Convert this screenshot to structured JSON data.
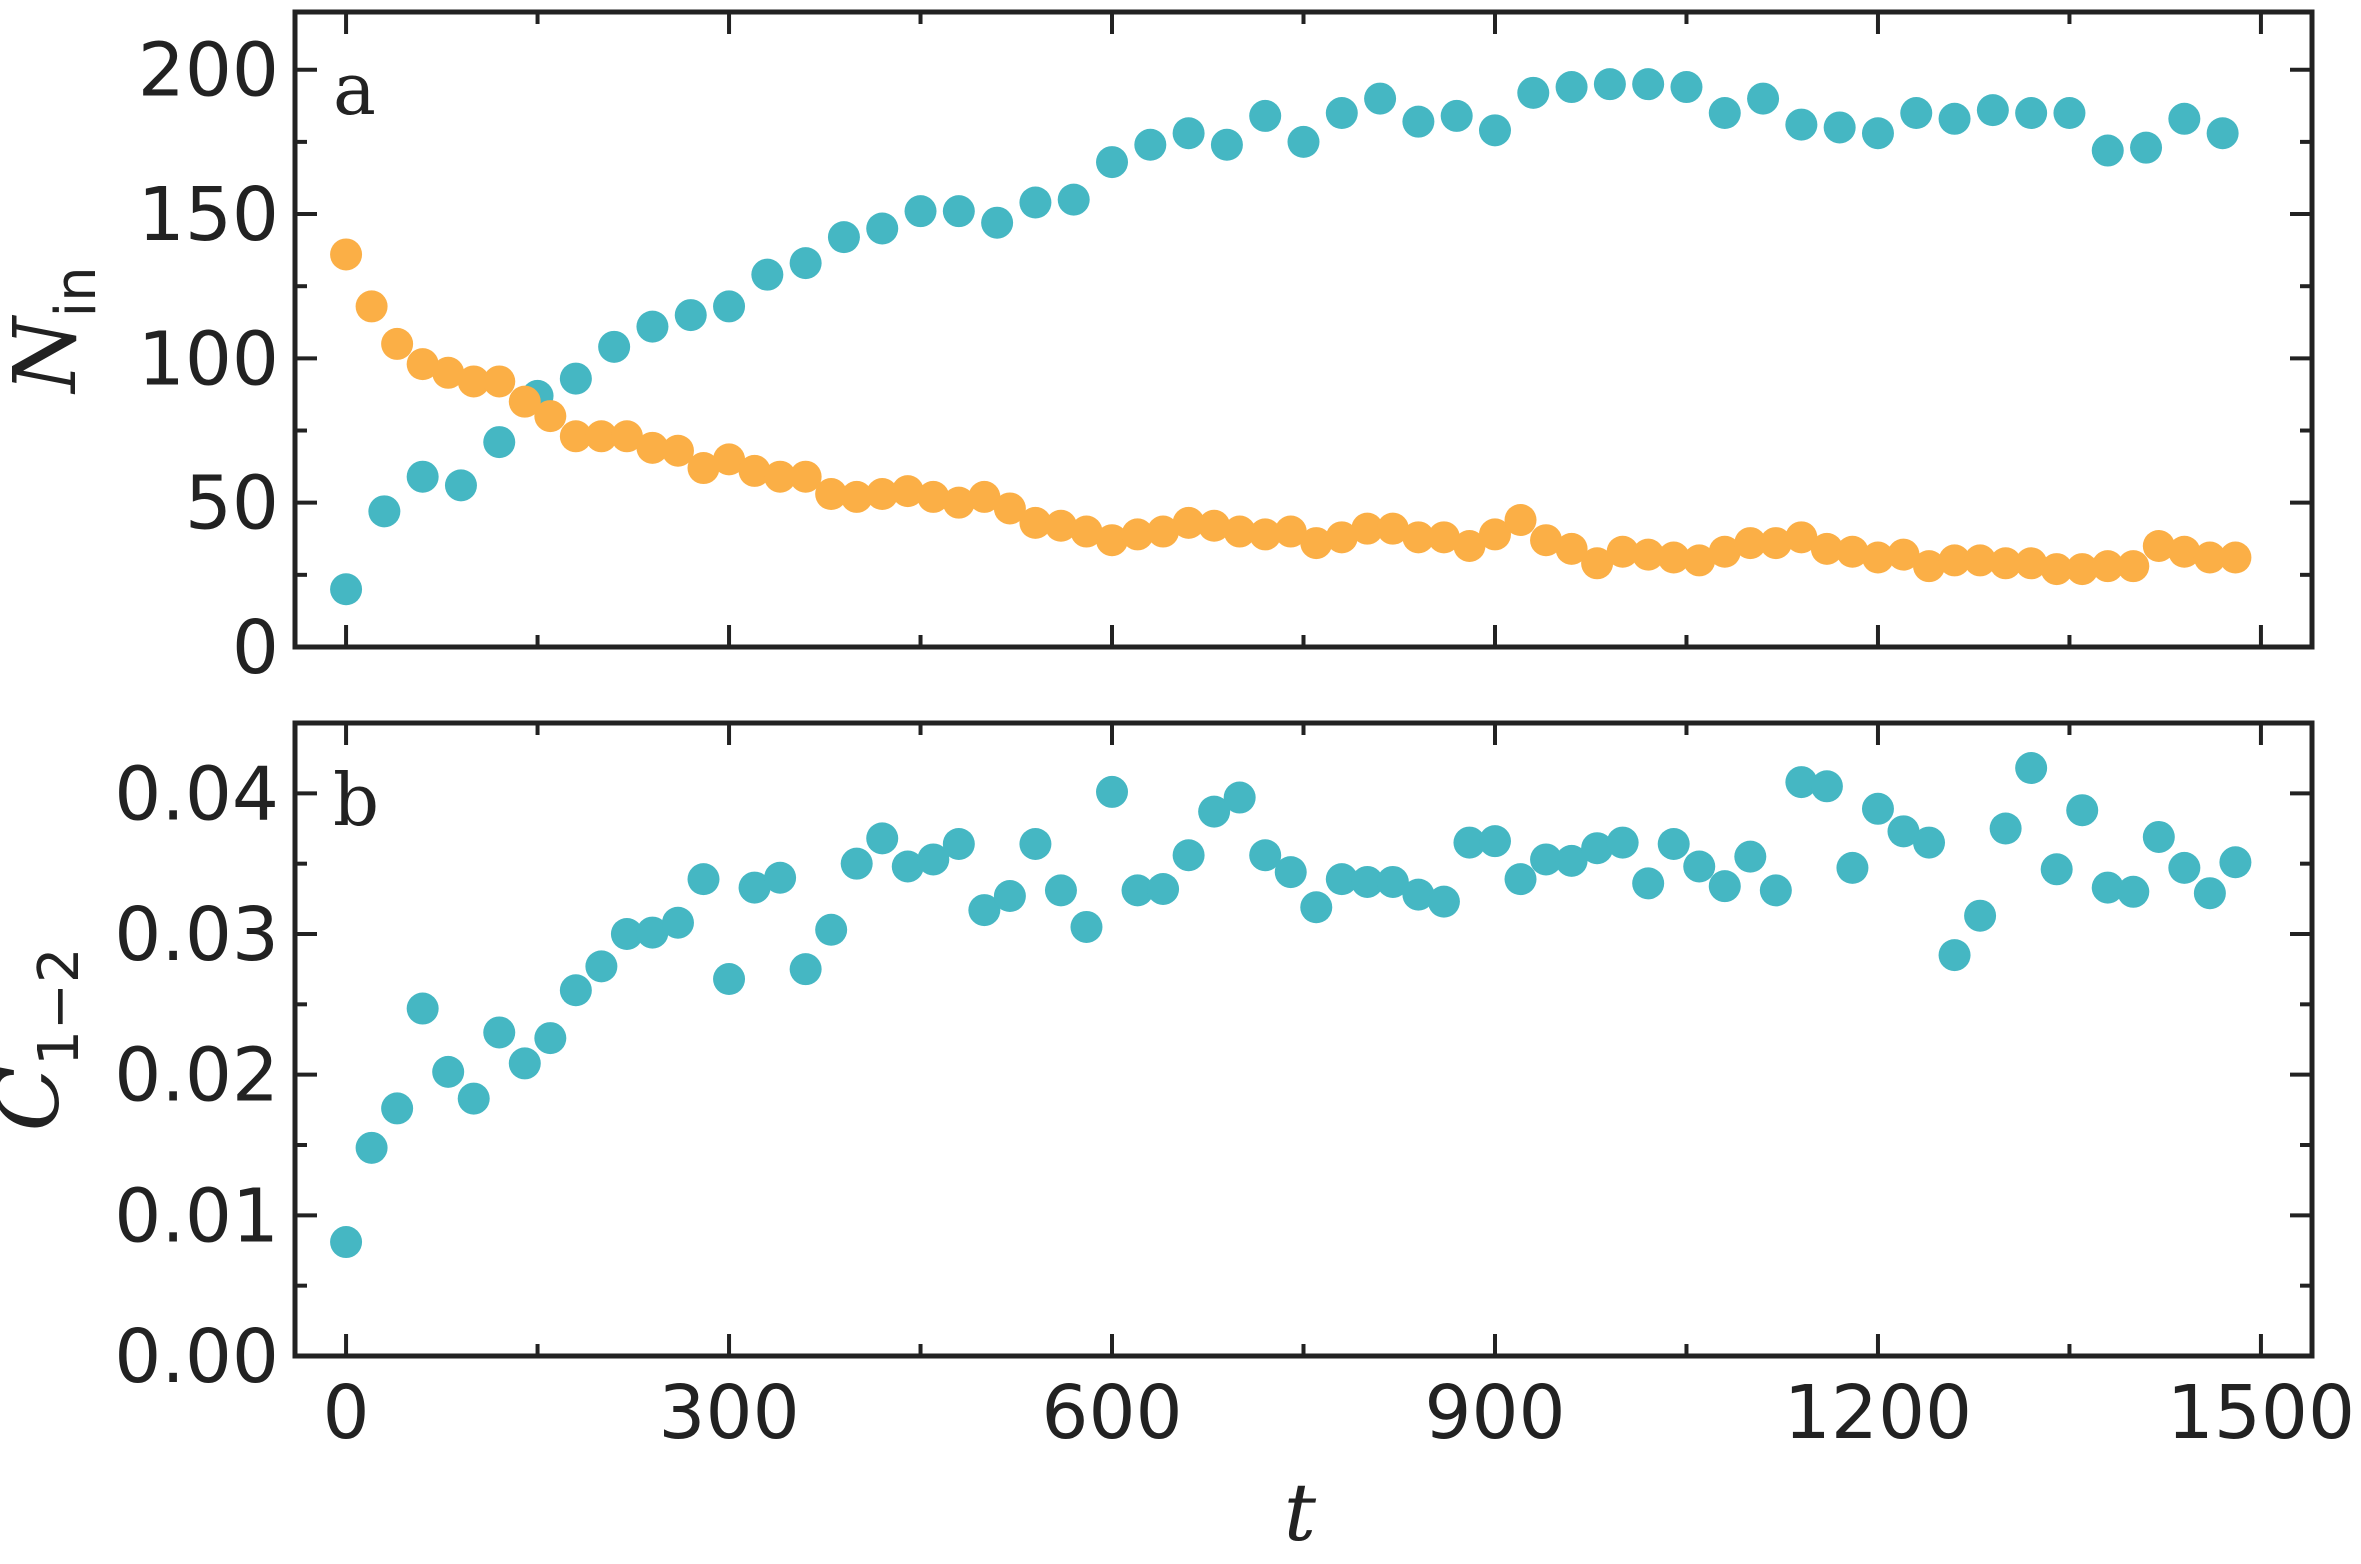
{
  "colors": {
    "teal": "#45b7c3",
    "orange": "#fbaf46"
  },
  "chart_data": [
    {
      "type": "scatter",
      "panel_label": "a",
      "ylabel": {
        "main": "N",
        "sub": "in"
      },
      "xlabel": "",
      "xlim": [
        -40,
        1540
      ],
      "ylim": [
        0,
        220
      ],
      "xticks": [
        0,
        300,
        600,
        900,
        1200,
        1500
      ],
      "yticks": [
        0,
        50,
        100,
        150,
        200
      ],
      "series": [
        {
          "color": "#45b7c3",
          "x": [
            0,
            30,
            60,
            90,
            120,
            150,
            180,
            210,
            240,
            270,
            300,
            330,
            360,
            390,
            420,
            450,
            480,
            510,
            540,
            570,
            600,
            630,
            660,
            690,
            720,
            750,
            780,
            810,
            840,
            870,
            900,
            930,
            960,
            990,
            1020,
            1050,
            1080,
            1110,
            1140,
            1170,
            1200,
            1230,
            1260,
            1290,
            1320,
            1350,
            1380,
            1410,
            1440,
            1470
          ],
          "y": [
            20,
            47,
            59,
            56,
            71,
            87,
            93,
            104,
            111,
            115,
            118,
            129,
            133,
            142,
            145,
            151,
            151,
            147,
            154,
            155,
            168,
            174,
            178,
            174,
            184,
            175,
            185,
            190,
            182,
            184,
            179,
            192,
            194,
            195,
            195,
            194,
            185,
            190,
            181,
            180,
            178,
            185,
            183,
            186,
            185,
            185,
            172,
            173,
            183,
            178
          ]
        },
        {
          "color": "#fbaf46",
          "x": [
            0,
            20,
            40,
            60,
            80,
            100,
            120,
            140,
            160,
            180,
            200,
            220,
            240,
            260,
            280,
            300,
            320,
            340,
            360,
            380,
            400,
            420,
            440,
            460,
            480,
            500,
            520,
            540,
            560,
            580,
            600,
            620,
            640,
            660,
            680,
            700,
            720,
            740,
            760,
            780,
            800,
            820,
            840,
            860,
            880,
            900,
            920,
            940,
            960,
            980,
            1000,
            1020,
            1040,
            1060,
            1080,
            1100,
            1120,
            1140,
            1160,
            1180,
            1200,
            1220,
            1240,
            1260,
            1280,
            1300,
            1320,
            1340,
            1360,
            1380,
            1400,
            1420,
            1440,
            1460,
            1480
          ],
          "y": [
            136,
            118,
            105,
            98,
            95,
            92,
            92,
            85,
            80,
            73,
            73,
            73,
            69,
            68,
            62,
            65,
            61,
            59,
            59,
            53,
            52,
            53,
            54,
            52,
            50,
            52,
            48,
            43,
            42,
            40,
            37,
            39,
            40,
            43,
            42,
            40,
            39,
            40,
            36,
            38,
            41,
            41,
            38,
            38,
            35,
            39,
            44,
            37,
            34,
            29,
            33,
            32,
            31,
            30,
            33,
            36,
            36,
            38,
            34,
            33,
            31,
            32,
            28,
            30,
            30,
            29,
            29,
            27,
            27,
            28,
            28,
            35,
            33,
            31,
            31
          ]
        }
      ]
    },
    {
      "type": "scatter",
      "panel_label": "b",
      "ylabel": {
        "main": "C",
        "sub": "1−2"
      },
      "xlabel": "t",
      "xlim": [
        -40,
        1540
      ],
      "ylim": [
        0,
        0.045
      ],
      "xticks": [
        0,
        300,
        600,
        900,
        1200,
        1500
      ],
      "yticks": [
        "0.00",
        "0.01",
        "0.02",
        "0.03",
        "0.04"
      ],
      "series": [
        {
          "color": "#45b7c3",
          "x": [
            0,
            20,
            40,
            60,
            80,
            100,
            120,
            140,
            160,
            180,
            200,
            220,
            240,
            260,
            280,
            300,
            320,
            340,
            360,
            380,
            400,
            420,
            440,
            460,
            480,
            500,
            520,
            540,
            560,
            580,
            600,
            620,
            640,
            660,
            680,
            700,
            720,
            740,
            760,
            780,
            800,
            820,
            840,
            860,
            880,
            900,
            920,
            940,
            960,
            980,
            1000,
            1020,
            1040,
            1060,
            1080,
            1100,
            1120,
            1140,
            1160,
            1180,
            1200,
            1220,
            1240,
            1260,
            1280,
            1300,
            1320,
            1340,
            1360,
            1380,
            1400,
            1420,
            1440,
            1460,
            1480
          ],
          "y": [
            0.0081,
            0.0148,
            0.0176,
            0.0247,
            0.0202,
            0.0183,
            0.023,
            0.0208,
            0.0226,
            0.026,
            0.0277,
            0.03,
            0.0301,
            0.0308,
            0.0339,
            0.0268,
            0.0333,
            0.034,
            0.0275,
            0.0303,
            0.035,
            0.0368,
            0.0348,
            0.0353,
            0.0364,
            0.0317,
            0.0327,
            0.0364,
            0.0331,
            0.0305,
            0.0401,
            0.0331,
            0.0332,
            0.0356,
            0.0387,
            0.0397,
            0.0356,
            0.0344,
            0.0319,
            0.0339,
            0.0337,
            0.0337,
            0.0328,
            0.0323,
            0.0365,
            0.0366,
            0.0339,
            0.0353,
            0.0352,
            0.0361,
            0.0365,
            0.0336,
            0.0364,
            0.0348,
            0.0334,
            0.0355,
            0.0331,
            0.0408,
            0.0405,
            0.0347,
            0.0389,
            0.0373,
            0.0365,
            0.0285,
            0.0313,
            0.0375,
            0.0418,
            0.0346,
            0.0388,
            0.0333,
            0.033,
            0.0369,
            0.0347,
            0.0329,
            0.0351
          ]
        }
      ]
    }
  ]
}
